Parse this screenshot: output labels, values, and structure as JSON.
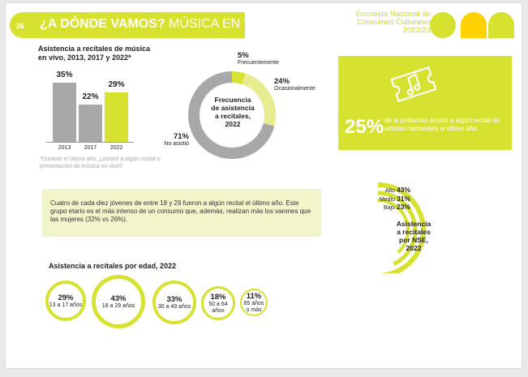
{
  "header": {
    "page_number": "36",
    "title_bold": "¿A DÓNDE VAMOS?",
    "title_rest": " MÚSICA EN VIVO",
    "survey_line1": "Encuesta Nacional de",
    "survey_line2": "Consumos Culturales",
    "survey_year": "2022/23"
  },
  "colors": {
    "accent": "#d7e230",
    "gray": "#a8a8a8",
    "logo_yellow": "#ffd200"
  },
  "bar_section": {
    "title_line1": "Asistencia a recitales de música",
    "title_line2": "en vivo, 2013, 2017 y 2022*",
    "note": "*Durante el último año, ¿asistió a algún recital o presentación de música en vivo?"
  },
  "donut_section": {
    "center_line1": "Frecuencia",
    "center_line2": "de asistencia",
    "center_line3": "a recitales,",
    "center_line4": "2022",
    "labels": [
      {
        "value": "5%",
        "label": "Frecuentemente"
      },
      {
        "value": "24%",
        "label": "Ocasionalmente"
      },
      {
        "value": "71%",
        "label": "No asistió"
      }
    ]
  },
  "stat_box": {
    "icon": "ticket-music-note-icon",
    "value": "25%",
    "text": "de la población asistió a algún recital de artistas nacionales el último año."
  },
  "text_box": {
    "text": "Cuatro de cada diez jóvenes de entre 18 y 29 fueron a algún recital el último año. Este grupo etario es el más intenso de un consumo que, además, realizan más los varones que las mujeres (32% vs 26%)."
  },
  "nse_section": {
    "title_line1": "Asistencia",
    "title_line2": "a recitales",
    "title_line3": "por NSE,",
    "title_line4": "2022",
    "rows": [
      {
        "label": "Alto",
        "value": "43%"
      },
      {
        "label": "Medio",
        "value": "31%"
      },
      {
        "label": "Bajo",
        "value": "23%"
      }
    ]
  },
  "age_section": {
    "title": "Asistencia a recitales por edad, 2022",
    "items": [
      {
        "value": "29%",
        "label": "13 a 17 años"
      },
      {
        "value": "43%",
        "label": "18 a 29 años"
      },
      {
        "value": "33%",
        "label": "30 a 49 años"
      },
      {
        "value": "18%",
        "label": "50 a 64 años"
      },
      {
        "value": "11%",
        "label_line1": "65 años",
        "label_line2": "o más"
      }
    ]
  },
  "chart_data": [
    {
      "type": "bar",
      "title": "Asistencia a recitales de música en vivo, 2013, 2017 y 2022*",
      "categories": [
        "2013",
        "2017",
        "2022"
      ],
      "values": [
        35,
        22,
        29
      ],
      "value_labels": [
        "35%",
        "22%",
        "29%"
      ],
      "ylim": [
        0,
        40
      ]
    },
    {
      "type": "pie",
      "title": "Frecuencia de asistencia a recitales, 2022",
      "categories": [
        "Frecuentemente",
        "Ocasionalmente",
        "No asistió"
      ],
      "values": [
        5,
        24,
        71
      ]
    },
    {
      "type": "bar",
      "title": "Asistencia a recitales por NSE, 2022",
      "categories": [
        "Alto",
        "Medio",
        "Bajo"
      ],
      "values": [
        43,
        31,
        23
      ]
    },
    {
      "type": "bar",
      "title": "Asistencia a recitales por edad, 2022",
      "categories": [
        "13 a 17 años",
        "18 a 29 años",
        "30 a 49 años",
        "50 a 64 años",
        "65 años o más"
      ],
      "values": [
        29,
        43,
        33,
        18,
        11
      ]
    }
  ]
}
